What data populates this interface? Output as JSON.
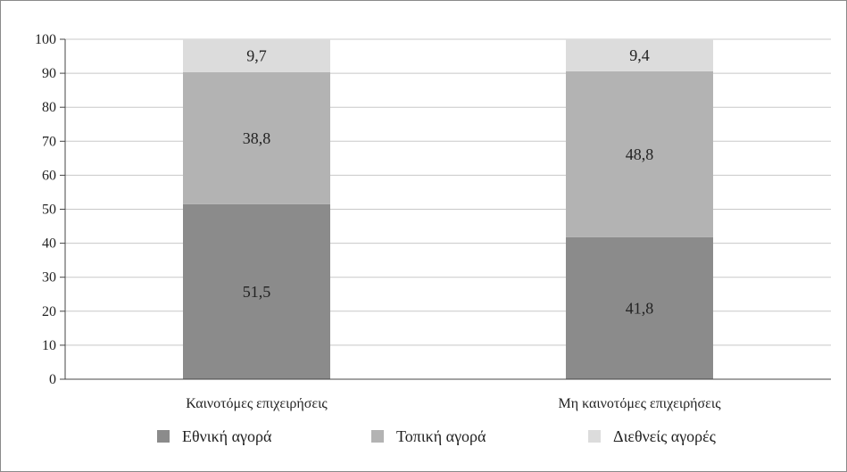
{
  "chart_data": {
    "type": "bar",
    "stacked": true,
    "categories": [
      "Καινοτόμες επιχειρήσεις",
      "Μη καινοτόμες επιχειρήσεις"
    ],
    "series": [
      {
        "name": "Εθνική αγορά",
        "values": [
          51.5,
          41.8
        ],
        "labels": [
          "51,5",
          "41,8"
        ],
        "color": "#8b8b8b"
      },
      {
        "name": "Τοπική αγορά",
        "values": [
          38.8,
          48.8
        ],
        "labels": [
          "38,8",
          "48,8"
        ],
        "color": "#b3b3b3"
      },
      {
        "name": "Διεθνείς αγορές",
        "values": [
          9.7,
          9.4
        ],
        "labels": [
          "9,7",
          "9,4"
        ],
        "color": "#dcdcdc"
      }
    ],
    "ylim": [
      0,
      100
    ],
    "yticks": [
      "0",
      "10",
      "20",
      "30",
      "40",
      "50",
      "60",
      "70",
      "80",
      "90",
      "100"
    ],
    "grid": true,
    "legend_position": "bottom"
  }
}
